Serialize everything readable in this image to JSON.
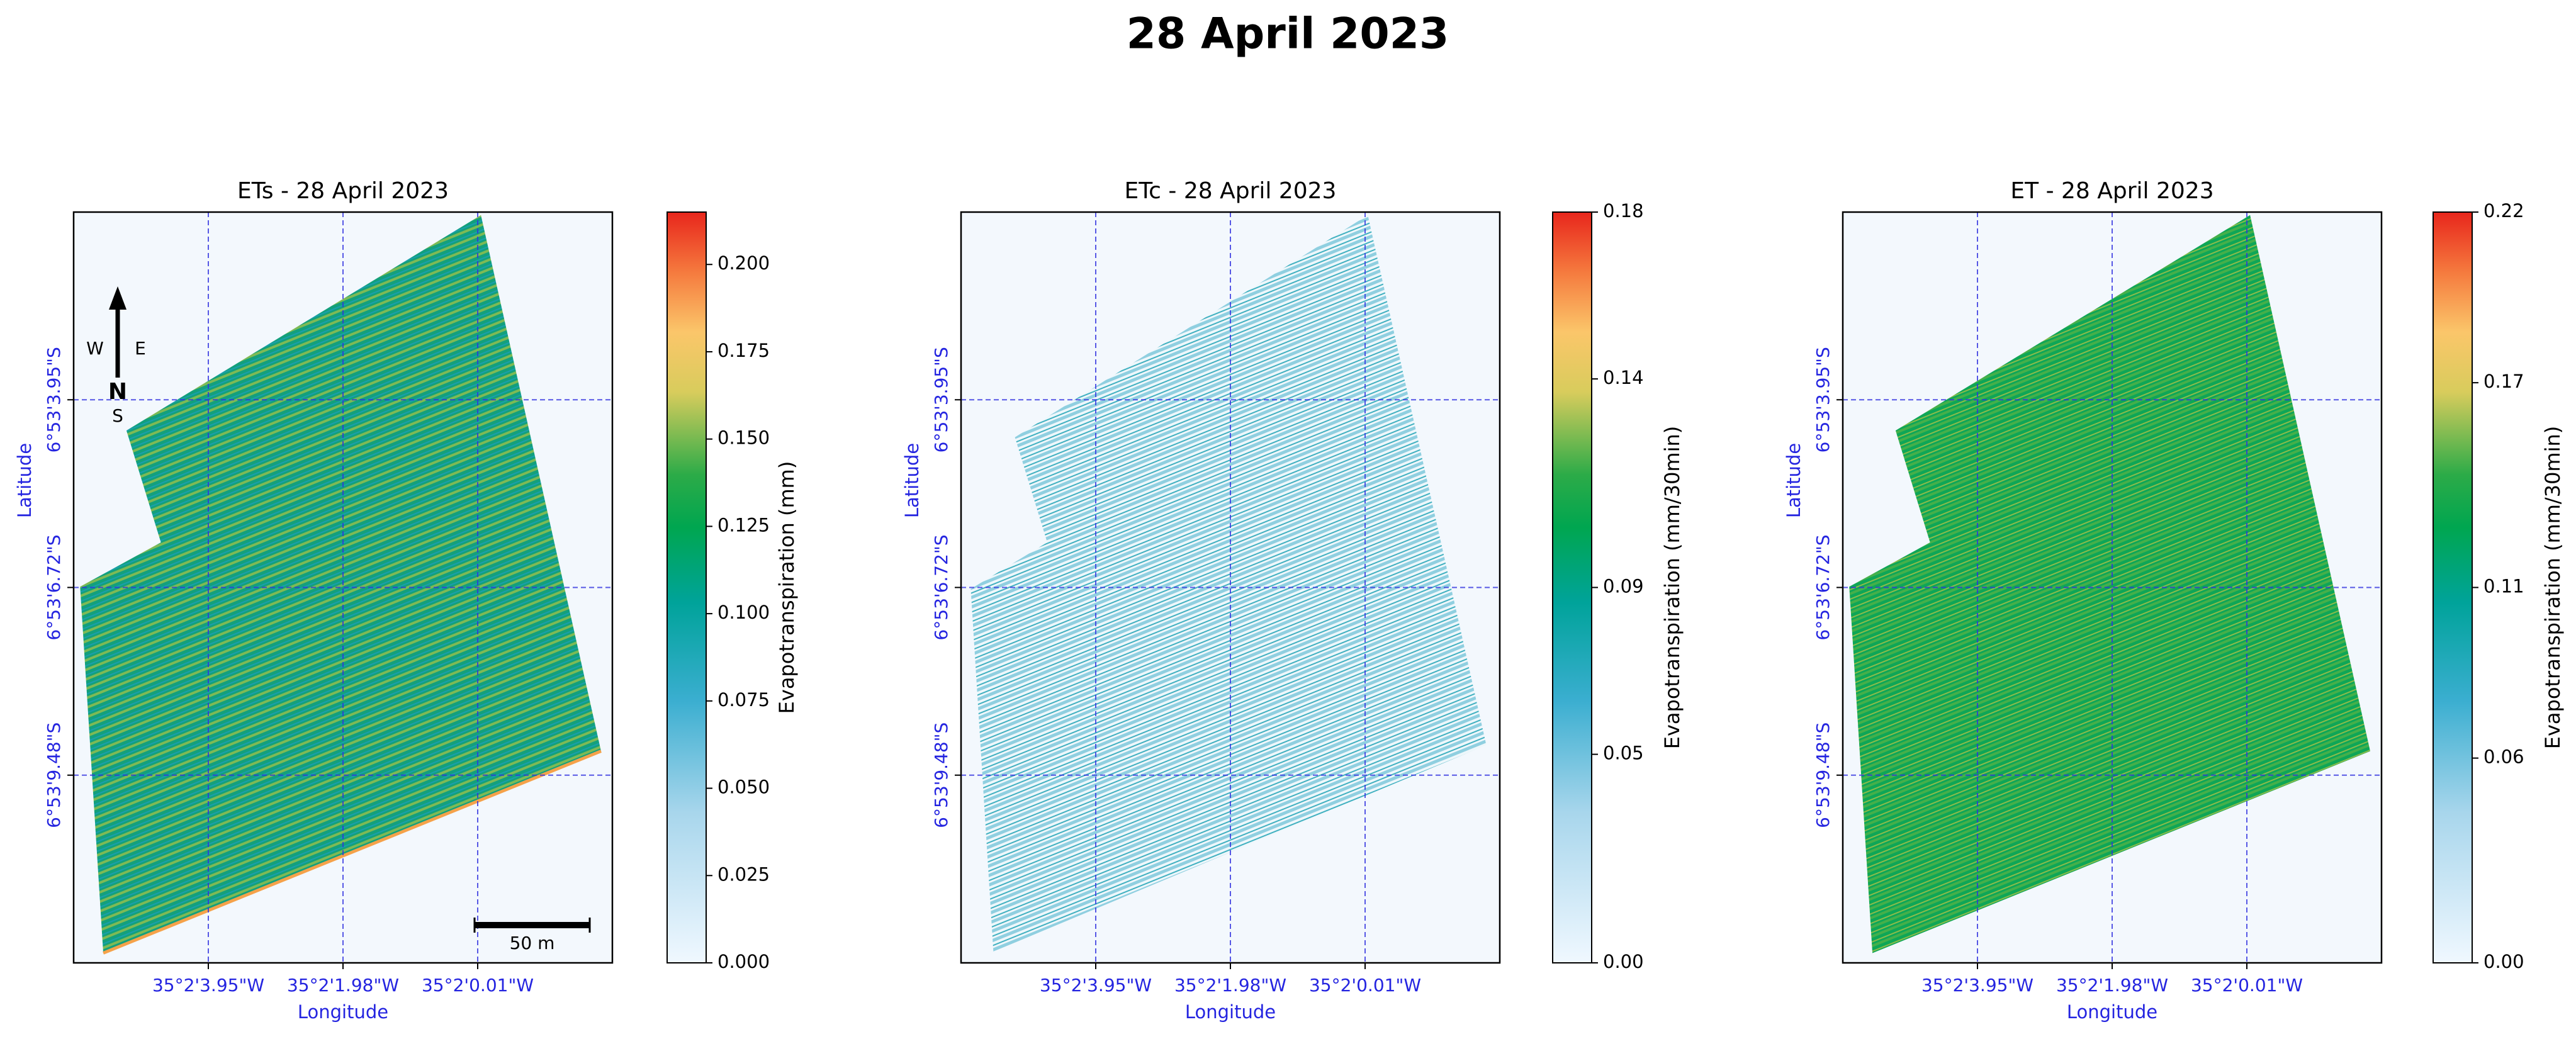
{
  "title": "28 April 2023",
  "panels": [
    {
      "title": "ETs - 28 April 2023",
      "x_label": "Longitude",
      "y_label": "Latitude",
      "x_ticks": [
        "35°2'3.95\"W",
        "35°2'1.98\"W",
        "35°2'0.01\"W"
      ],
      "y_ticks": [
        "6°53'3.95\"S",
        "6°53'6.72\"S",
        "6°53'9.48\"S"
      ],
      "colorbar": {
        "label": "Evapotranspiration (mm)",
        "lim": [
          0,
          0.215
        ],
        "ticks": [
          {
            "value": 0,
            "label": "0.000"
          },
          0.025,
          {
            "value": 0.05,
            "label": "0.050"
          },
          0.075,
          {
            "value": 0.1,
            "label": "0.100"
          },
          0.125,
          {
            "value": 0.15,
            "label": "0.150"
          },
          0.175,
          {
            "value": 0.2,
            "label": "0.200"
          }
        ]
      },
      "north_arrow": {
        "north": "N",
        "south": "S",
        "west": "W",
        "east": "E"
      },
      "scale_bar": "50 m"
    },
    {
      "title": "ETc - 28 April 2023",
      "x_label": "Longitude",
      "y_label": "Latitude",
      "x_ticks": [
        "35°2'3.95\"W",
        "35°2'1.98\"W",
        "35°2'0.01\"W"
      ],
      "y_ticks": [
        "6°53'3.95\"S",
        "6°53'6.72\"S",
        "6°53'9.48\"S"
      ],
      "colorbar": {
        "label": "Evapotranspiration (mm/30min)",
        "lim": [
          0,
          0.18
        ],
        "ticks": [
          {
            "value": 0,
            "label": "0.00"
          },
          0.05,
          0.09,
          0.14,
          0.18
        ]
      }
    },
    {
      "title": "ET - 28 April 2023",
      "x_label": "Longitude",
      "y_label": "Latitude",
      "x_ticks": [
        "35°2'3.95\"W",
        "35°2'1.98\"W",
        "35°2'0.01\"W"
      ],
      "y_ticks": [
        "6°53'3.95\"S",
        "6°53'6.72\"S",
        "6°53'9.48\"S"
      ],
      "colorbar": {
        "label": "Evapotranspiration (mm/30min)",
        "lim": [
          0,
          0.22
        ],
        "ticks": [
          {
            "value": 0,
            "label": "0.00"
          },
          0.06,
          0.11,
          0.17,
          0.22
        ]
      }
    }
  ]
}
